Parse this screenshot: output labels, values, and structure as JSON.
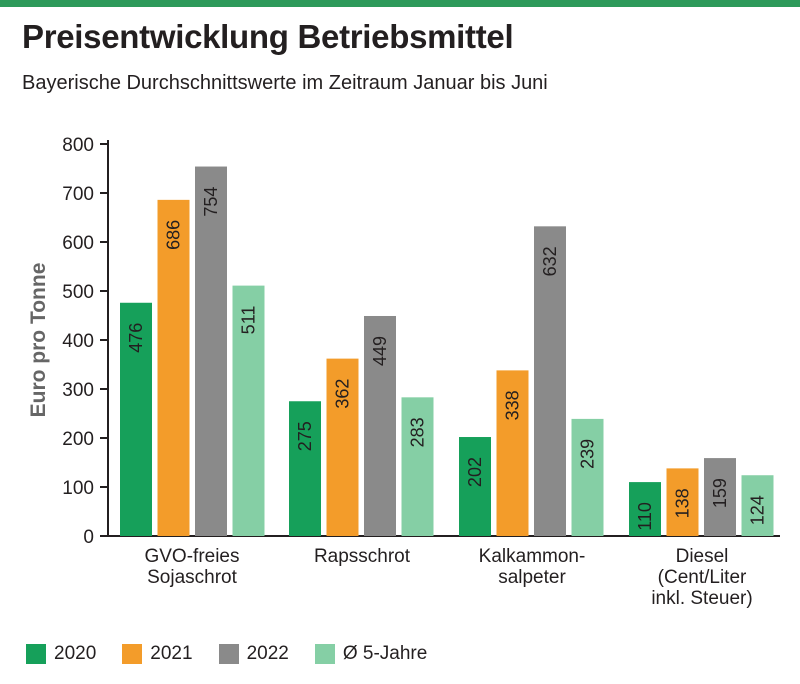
{
  "header": {
    "title": "Preisentwicklung Betriebsmittel",
    "subtitle": "Bayerische Durchschnittswerte im Zeitraum Januar bis Juni"
  },
  "colors": {
    "accent": "#2e9a5a",
    "series": [
      "#16a05a",
      "#f39c2a",
      "#8a8a8a",
      "#85cfa5"
    ]
  },
  "chart_data": {
    "type": "bar",
    "title": "Preisentwicklung Betriebsmittel",
    "subtitle": "Bayerische Durchschnittswerte im Zeitraum Januar bis Juni",
    "xlabel": "",
    "ylabel": "Euro pro Tonne",
    "ylim": [
      0,
      800
    ],
    "yticks": [
      0,
      100,
      200,
      300,
      400,
      500,
      600,
      700,
      800
    ],
    "grid": false,
    "legend_position": "bottom",
    "categories": [
      [
        "GVO-freies",
        "Sojaschrot"
      ],
      [
        "Rapsschrot"
      ],
      [
        "Kalkammon-",
        "salpeter"
      ],
      [
        "Diesel",
        "(Cent/Liter",
        "inkl. Steuer)"
      ]
    ],
    "series": [
      {
        "name": "2020",
        "values": [
          476,
          275,
          202,
          110
        ]
      },
      {
        "name": "2021",
        "values": [
          686,
          362,
          338,
          138
        ]
      },
      {
        "name": "2022",
        "values": [
          754,
          449,
          632,
          159
        ]
      },
      {
        "name": "Ø 5-Jahre",
        "values": [
          511,
          283,
          239,
          124
        ]
      }
    ]
  }
}
